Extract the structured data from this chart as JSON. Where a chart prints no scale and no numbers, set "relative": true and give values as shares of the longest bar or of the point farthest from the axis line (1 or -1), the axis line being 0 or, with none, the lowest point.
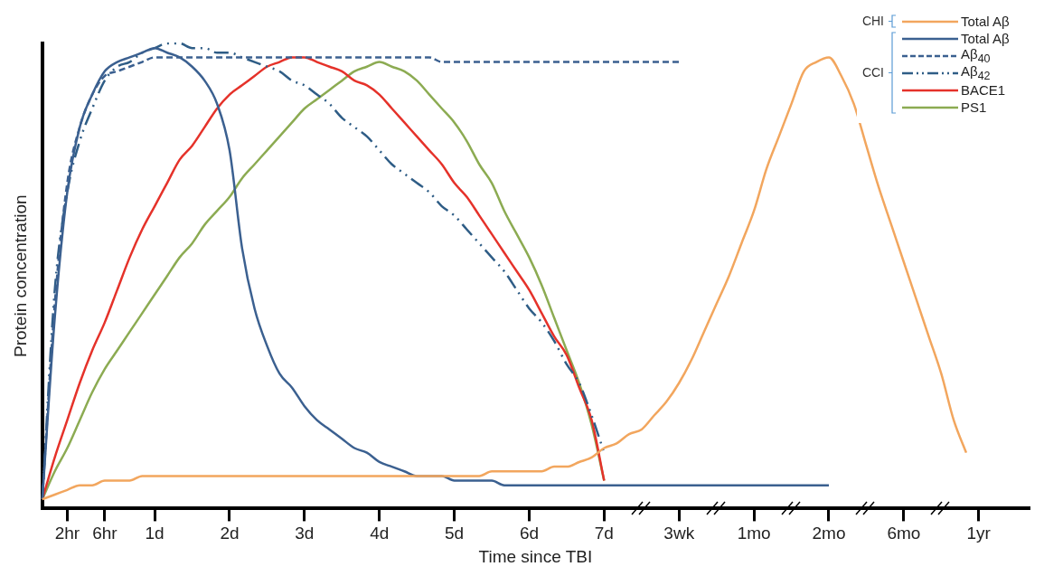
{
  "chart_data": {
    "type": "line",
    "relative": true,
    "xlabel": "Time since TBI",
    "ylabel": "Protein concentration",
    "categories": [
      null,
      null,
      "2hr",
      null,
      null,
      "6hr",
      null,
      null,
      null,
      "1d",
      null,
      null,
      null,
      null,
      null,
      "2d",
      null,
      null,
      null,
      null,
      null,
      "3d",
      null,
      null,
      null,
      null,
      null,
      "4d",
      null,
      null,
      null,
      null,
      null,
      "5d",
      null,
      null,
      null,
      null,
      null,
      "6d",
      null,
      null,
      null,
      null,
      null,
      "7d",
      null,
      null,
      null,
      null,
      null,
      "3wk",
      null,
      null,
      null,
      null,
      null,
      "1mo",
      null,
      null,
      null,
      null,
      null,
      "2mo",
      null,
      null,
      null,
      null,
      null,
      "6mo",
      null,
      null,
      null,
      null,
      null,
      "1yr",
      null,
      null,
      null,
      null
    ],
    "annotations": [
      "CHI",
      "CCI"
    ],
    "legend": "top right",
    "series": [
      {
        "name": "Total Aβ",
        "color": "#f2a65e",
        "line_style": "solid",
        "values": [
          0.02,
          0.03,
          0.04,
          0.05,
          0.05,
          0.06,
          0.06,
          0.06,
          0.07,
          0.07,
          0.07,
          0.07,
          0.07,
          0.07,
          0.07,
          0.07,
          0.07,
          0.07,
          0.07,
          0.07,
          0.07,
          0.07,
          0.07,
          0.07,
          0.07,
          0.07,
          0.07,
          0.07,
          0.07,
          0.07,
          0.07,
          0.07,
          0.07,
          0.07,
          0.07,
          0.07,
          0.08,
          0.08,
          0.08,
          0.08,
          0.08,
          0.09,
          0.09,
          0.1,
          0.11,
          0.13,
          0.14,
          0.16,
          0.17,
          0.2,
          0.23,
          0.27,
          0.32,
          0.38,
          0.44,
          0.5,
          0.57,
          0.64,
          0.73,
          0.8,
          0.87,
          0.94,
          0.96,
          0.97,
          0.93,
          0.87,
          0.78,
          0.69,
          0.61,
          0.53,
          0.45,
          0.37,
          0.29,
          0.19,
          0.12,
          null,
          null,
          null,
          null,
          null
        ]
      },
      {
        "name": "Total Aβ",
        "color": "#3b6090",
        "line_style": "solid",
        "values": [
          0.02,
          0.41,
          0.68,
          0.82,
          0.89,
          0.94,
          0.96,
          0.97,
          0.98,
          0.99,
          0.98,
          0.97,
          0.95,
          0.92,
          0.87,
          0.77,
          0.56,
          0.43,
          0.35,
          0.29,
          0.26,
          0.22,
          0.19,
          0.17,
          0.15,
          0.13,
          0.12,
          0.1,
          0.09,
          0.08,
          0.07,
          0.07,
          0.07,
          0.06,
          0.06,
          0.06,
          0.06,
          0.05,
          0.05,
          0.05,
          0.05,
          0.05,
          0.05,
          0.05,
          0.05,
          0.05,
          0.05,
          0.05,
          0.05,
          0.05,
          0.05,
          0.05,
          0.05,
          0.05,
          0.05,
          0.05,
          0.05,
          0.05,
          0.05,
          0.05,
          0.05,
          0.05,
          0.05,
          0.05,
          null,
          null,
          null,
          null,
          null,
          null,
          null,
          null,
          null,
          null,
          null,
          null,
          null,
          null,
          null,
          null
        ]
      },
      {
        "name": "Aβ$_{40}$",
        "color": "#3b6090",
        "line_style": "dashed",
        "values": [
          0.02,
          0.44,
          0.7,
          0.82,
          0.89,
          0.93,
          0.94,
          0.95,
          0.96,
          0.97,
          0.97,
          0.97,
          0.97,
          0.97,
          0.97,
          0.97,
          0.97,
          0.97,
          0.97,
          0.97,
          0.97,
          0.97,
          0.97,
          0.97,
          0.97,
          0.97,
          0.97,
          0.97,
          0.97,
          0.97,
          0.97,
          0.97,
          0.96,
          0.96,
          0.96,
          0.96,
          0.96,
          0.96,
          0.96,
          0.96,
          0.96,
          0.96,
          0.96,
          0.96,
          0.96,
          0.96,
          0.96,
          0.96,
          0.96,
          0.96,
          0.96,
          0.96,
          null,
          null,
          null,
          null,
          null,
          null,
          null,
          null,
          null,
          null,
          null,
          null,
          null,
          null,
          null,
          null,
          null,
          null,
          null,
          null,
          null,
          null,
          null,
          null,
          null,
          null,
          null,
          null
        ]
      },
      {
        "name": "Aβ$_{42}$",
        "color": "#2f5d86",
        "line_style": "dotted",
        "values": [
          0.02,
          0.47,
          0.68,
          0.79,
          0.86,
          0.92,
          0.95,
          0.96,
          0.98,
          0.99,
          1.0,
          1.0,
          0.99,
          0.99,
          0.98,
          0.98,
          0.97,
          0.96,
          0.95,
          0.94,
          0.92,
          0.91,
          0.89,
          0.87,
          0.84,
          0.82,
          0.8,
          0.77,
          0.74,
          0.72,
          0.7,
          0.68,
          0.65,
          0.63,
          0.6,
          0.57,
          0.54,
          0.51,
          0.47,
          0.43,
          0.4,
          0.36,
          0.31,
          0.27,
          0.2,
          0.12,
          null,
          null,
          null,
          null,
          null,
          null,
          null,
          null,
          null,
          null,
          null,
          null,
          null,
          null,
          null,
          null,
          null,
          null,
          null,
          null,
          null,
          null,
          null,
          null,
          null,
          null,
          null,
          null,
          null,
          null,
          null,
          null,
          null,
          null
        ]
      },
      {
        "name": "BACE1",
        "color": "#e5322a",
        "line_style": "solid",
        "values": [
          0.02,
          0.11,
          0.19,
          0.27,
          0.34,
          0.4,
          0.47,
          0.54,
          0.6,
          0.65,
          0.7,
          0.75,
          0.78,
          0.82,
          0.86,
          0.89,
          0.91,
          0.93,
          0.95,
          0.96,
          0.97,
          0.97,
          0.96,
          0.95,
          0.94,
          0.92,
          0.91,
          0.89,
          0.86,
          0.83,
          0.8,
          0.77,
          0.74,
          0.7,
          0.67,
          0.63,
          0.59,
          0.55,
          0.51,
          0.47,
          0.42,
          0.37,
          0.33,
          0.26,
          0.19,
          0.06,
          null,
          null,
          null,
          null,
          null,
          null,
          null,
          null,
          null,
          null,
          null,
          null,
          null,
          null,
          null,
          null,
          null,
          null,
          null,
          null,
          null,
          null,
          null,
          null,
          null,
          null,
          null,
          null,
          null,
          null,
          null,
          null,
          null,
          null
        ]
      },
      {
        "name": "PS1",
        "color": "#8cab52",
        "line_style": "solid",
        "values": [
          0.02,
          0.08,
          0.13,
          0.19,
          0.25,
          0.3,
          0.34,
          0.38,
          0.42,
          0.46,
          0.5,
          0.54,
          0.57,
          0.61,
          0.64,
          0.67,
          0.71,
          0.74,
          0.77,
          0.8,
          0.83,
          0.86,
          0.88,
          0.9,
          0.92,
          0.94,
          0.95,
          0.96,
          0.95,
          0.94,
          0.92,
          0.89,
          0.86,
          0.83,
          0.79,
          0.74,
          0.7,
          0.64,
          0.59,
          0.54,
          0.48,
          0.41,
          0.34,
          0.27,
          0.18,
          0.06,
          null,
          null,
          null,
          null,
          null,
          null,
          null,
          null,
          null,
          null,
          null,
          null,
          null,
          null,
          null,
          null,
          null,
          null,
          null,
          null,
          null,
          null,
          null,
          null,
          null,
          null,
          null,
          null,
          null,
          null,
          null,
          null,
          null,
          null
        ]
      }
    ]
  }
}
